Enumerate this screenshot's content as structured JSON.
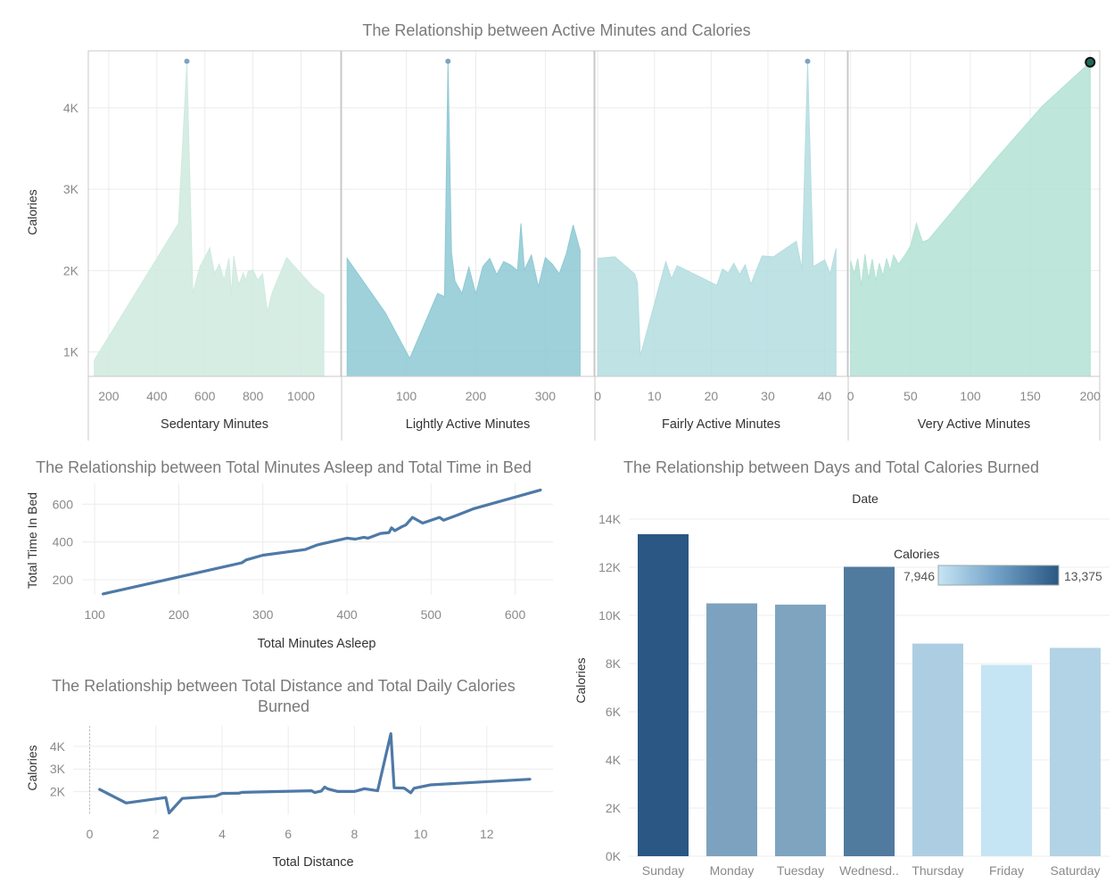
{
  "top": {
    "title": "The Relationship between Active Minutes and Calories",
    "ylabel": "Calories",
    "yticks": [
      "1K",
      "2K",
      "3K",
      "4K"
    ]
  },
  "sleep": {
    "title": "The Relationship between Total Minutes Asleep and Total Time in Bed",
    "xlabel": "Total Minutes Asleep",
    "ylabel": "Total Time In Bed"
  },
  "distance": {
    "title_line1": "The Relationship between Total Distance and Total Daily Calories",
    "title_line2": "Burned",
    "xlabel": "Total Distance",
    "ylabel": "Calories"
  },
  "days": {
    "title": "The Relationship between Days and Total Calories Burned",
    "header": "Date",
    "ylabel": "Calories",
    "legend_title": "Calories",
    "legend_min": "7,946",
    "legend_max": "13,375"
  },
  "colors": {
    "sedentary": "#cfeadf",
    "lightly": "#8ec9d4",
    "fairly": "#b4dde0",
    "very": "#b3e2d3",
    "line": "#4e79a7",
    "bar_dark": "#2a5783",
    "bar_light": "#b9dcef"
  },
  "chart_data": [
    {
      "type": "area",
      "title": "The Relationship between Active Minutes and Calories",
      "ylabel": "Calories",
      "ylim": [
        700,
        4700
      ],
      "panels": [
        {
          "name": "sedentary",
          "xlabel": "Sedentary Minutes",
          "xlim": [
            115,
            1165
          ],
          "xticks": [
            200,
            400,
            600,
            800,
            1000
          ],
          "x": [
            140,
            490,
            525,
            550,
            580,
            600,
            620,
            640,
            660,
            680,
            700,
            710,
            720,
            740,
            760,
            770,
            780,
            800,
            820,
            840,
            860,
            880,
            940,
            1000,
            1050,
            1095
          ],
          "y": [
            900,
            2580,
            4550,
            1720,
            2050,
            2160,
            2280,
            1960,
            2080,
            1880,
            2150,
            1700,
            2180,
            1820,
            1970,
            1880,
            1990,
            2010,
            1880,
            1960,
            1490,
            1730,
            2160,
            1960,
            1800,
            1700
          ]
        },
        {
          "name": "lightly",
          "xlabel": "Lightly Active Minutes",
          "xlim": [
            7,
            370
          ],
          "xticks": [
            100,
            200,
            300
          ],
          "x": [
            15,
            70,
            105,
            145,
            155,
            160,
            165,
            170,
            180,
            190,
            200,
            210,
            220,
            230,
            240,
            250,
            260,
            265,
            270,
            280,
            290,
            300,
            310,
            320,
            330,
            340,
            350
          ],
          "y": [
            2150,
            1480,
            920,
            1720,
            1680,
            4550,
            2220,
            1870,
            1720,
            2040,
            1710,
            2050,
            2150,
            1950,
            2110,
            2070,
            2000,
            2580,
            2010,
            2190,
            1800,
            2160,
            2080,
            1960,
            2200,
            2560,
            2250
          ]
        },
        {
          "name": "fairly",
          "xlabel": "Fairly Active Minutes",
          "xlim": [
            -0.5,
            44
          ],
          "xticks": [
            0,
            10,
            20,
            30,
            40
          ],
          "x": [
            0,
            3,
            6.5,
            7,
            7.5,
            12,
            13,
            14,
            21,
            22,
            23,
            24,
            25,
            26,
            27,
            28,
            29,
            31,
            35,
            36,
            37,
            38,
            40,
            41,
            42
          ],
          "y": [
            2150,
            2170,
            1960,
            1850,
            950,
            2110,
            1900,
            2060,
            1820,
            2020,
            1970,
            2090,
            1950,
            2070,
            1830,
            2010,
            2180,
            2170,
            2360,
            2020,
            4550,
            2050,
            2130,
            1960,
            2270
          ]
        },
        {
          "name": "very",
          "xlabel": "Very Active Minutes",
          "xlim": [
            -2,
            208
          ],
          "xticks": [
            0,
            50,
            100,
            150,
            200
          ],
          "x": [
            0,
            3,
            6,
            9,
            12,
            15,
            18,
            21,
            24,
            27,
            30,
            33,
            36,
            40,
            45,
            50,
            55,
            60,
            65,
            120,
            160,
            200
          ],
          "y": [
            2120,
            1960,
            2150,
            1810,
            2200,
            1890,
            2140,
            1870,
            2090,
            1930,
            2150,
            2000,
            2190,
            2080,
            2180,
            2300,
            2580,
            2350,
            2380,
            3350,
            4020,
            4560
          ]
        }
      ]
    },
    {
      "type": "line",
      "title": "The Relationship between Total Minutes Asleep and Total Time in Bed",
      "xlabel": "Total Minutes Asleep",
      "ylabel": "Total Time In Bed",
      "xlim": [
        85,
        645
      ],
      "ylim": [
        120,
        710
      ],
      "xticks": [
        100,
        200,
        300,
        400,
        500,
        600
      ],
      "yticks": [
        200,
        400,
        600
      ],
      "x": [
        110,
        200,
        275,
        280,
        300,
        350,
        365,
        370,
        380,
        400,
        410,
        420,
        425,
        440,
        450,
        453,
        457,
        465,
        470,
        478,
        490,
        510,
        515,
        530,
        550,
        630
      ],
      "y": [
        125,
        215,
        290,
        305,
        330,
        360,
        385,
        390,
        400,
        420,
        415,
        425,
        420,
        445,
        450,
        475,
        460,
        480,
        490,
        530,
        500,
        530,
        515,
        540,
        575,
        675
      ]
    },
    {
      "type": "line",
      "title": "The Relationship between Total Distance and Total Daily Calories Burned",
      "xlabel": "Total Distance",
      "ylabel": "Calories",
      "xlim": [
        -0.5,
        14
      ],
      "ylim": [
        1000,
        4900
      ],
      "xticks": [
        0,
        2,
        4,
        6,
        8,
        10,
        12
      ],
      "yticks": [
        2000,
        3000,
        4000
      ],
      "x": [
        0.3,
        1.1,
        2.3,
        2.4,
        2.8,
        3.6,
        3.8,
        4.0,
        4.5,
        4.6,
        6.7,
        6.8,
        7.0,
        7.1,
        7.2,
        7.5,
        8.0,
        8.3,
        8.7,
        9.1,
        9.2,
        9.5,
        9.7,
        9.8,
        10.3,
        13.3
      ],
      "y": [
        2100,
        1500,
        1740,
        1060,
        1700,
        1780,
        1800,
        1920,
        1930,
        1970,
        2040,
        1960,
        2030,
        2200,
        2120,
        2010,
        2010,
        2130,
        2040,
        4560,
        2170,
        2160,
        1950,
        2150,
        2300,
        2550
      ]
    },
    {
      "type": "bar",
      "title": "The Relationship between Days and Total Calories Burned",
      "xlabel": "Date",
      "ylabel": "Calories",
      "categories": [
        "Sunday",
        "Monday",
        "Tuesday",
        "Wednesd..",
        "Thursday",
        "Friday",
        "Saturday"
      ],
      "values": [
        13375,
        10500,
        10450,
        12020,
        8830,
        7946,
        8650
      ],
      "ylim": [
        0,
        14000
      ],
      "yticks": [
        "0K",
        "2K",
        "4K",
        "6K",
        "8K",
        "10K",
        "12K",
        "14K"
      ],
      "legend": {
        "title": "Calories",
        "min": 7946,
        "max": 13375
      }
    }
  ]
}
